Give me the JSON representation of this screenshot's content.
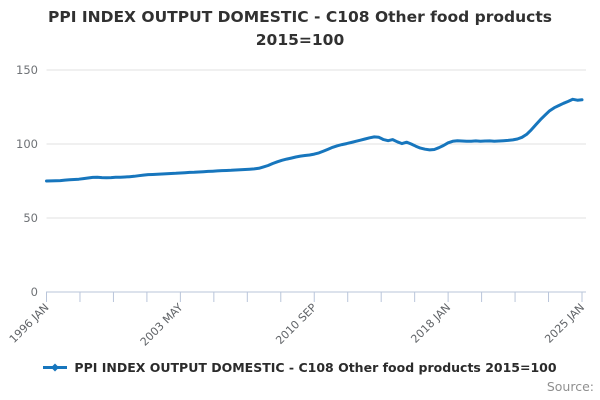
{
  "title": "PPI INDEX OUTPUT DOMESTIC - C108 Other food products 2015=100",
  "legend": {
    "label": "PPI INDEX OUTPUT DOMESTIC - C108 Other food products 2015=100"
  },
  "source_label": "Source:",
  "colors": {
    "line": "#1776bd",
    "axis": "#b9c5da",
    "grid": "#e1e1e1",
    "y_label": "#6f7276",
    "x_label": "#606367"
  },
  "chart_data": {
    "type": "line",
    "title": "PPI INDEX OUTPUT DOMESTIC - C108 Other food products 2015=100",
    "xlabel": "",
    "ylabel": "",
    "ylim": [
      0,
      150
    ],
    "y_ticks": [
      0,
      50,
      100,
      150
    ],
    "grid": "horizontal-only",
    "legend_position": "bottom-center",
    "x_axis_total_ticks": 17,
    "x_label_every_n_ticks": 4,
    "x_tick_labels": [
      "1996 JAN",
      "2003 MAY",
      "2010 SEP",
      "2018 JAN",
      "2025 JAN"
    ],
    "x_range_months": 348,
    "points_interval_months": 3,
    "series_name": "PPI INDEX OUTPUT DOMESTIC - C108 Other food products 2015=100",
    "values": [
      75.0,
      75.1,
      75.2,
      75.3,
      75.6,
      75.8,
      76.0,
      76.2,
      76.6,
      77.0,
      77.4,
      77.5,
      77.3,
      77.2,
      77.3,
      77.5,
      77.6,
      77.7,
      77.9,
      78.2,
      78.6,
      79.0,
      79.3,
      79.4,
      79.5,
      79.7,
      79.9,
      80.1,
      80.2,
      80.4,
      80.6,
      80.8,
      80.9,
      81.1,
      81.3,
      81.5,
      81.6,
      81.8,
      82.0,
      82.1,
      82.2,
      82.4,
      82.6,
      82.8,
      83.0,
      83.2,
      83.6,
      84.5,
      85.5,
      86.8,
      88.0,
      89.0,
      89.8,
      90.5,
      91.2,
      91.8,
      92.2,
      92.6,
      93.2,
      94.0,
      95.2,
      96.5,
      97.8,
      98.8,
      99.6,
      100.3,
      101.0,
      101.8,
      102.6,
      103.4,
      104.2,
      104.8,
      104.5,
      103.0,
      102.2,
      103.0,
      101.5,
      100.3,
      101.2,
      100.0,
      98.5,
      97.2,
      96.5,
      96.0,
      96.3,
      97.5,
      99.0,
      100.8,
      101.8,
      102.2,
      102.0,
      101.8,
      101.9,
      102.1,
      101.8,
      102.0,
      102.1,
      101.9,
      102.0,
      102.2,
      102.4,
      102.8,
      103.4,
      104.5,
      106.5,
      109.5,
      113.0,
      116.5,
      119.5,
      122.5,
      124.5,
      126.0,
      127.5,
      128.8,
      130.2,
      129.6,
      129.9
    ]
  }
}
